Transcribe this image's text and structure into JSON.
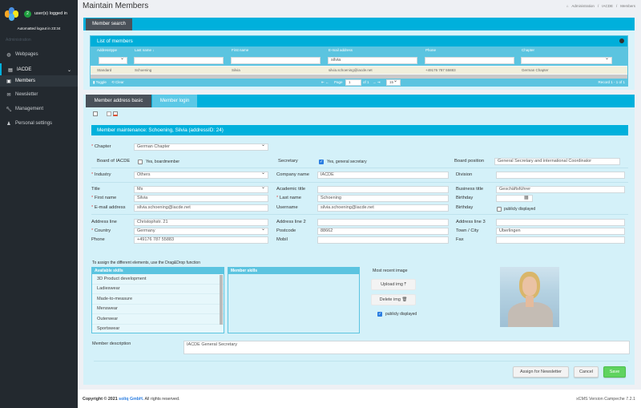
{
  "sidebar": {
    "logged_in": "user(s) logged in",
    "logged_in_count": "2",
    "auto_logout": "Automatted logout in 23:34",
    "section": "Administration",
    "items": [
      {
        "label": "Webpages",
        "icon": "globe-icon"
      },
      {
        "label": "IACDE",
        "icon": "book-icon"
      },
      {
        "label": "Members",
        "icon": "id-card-icon"
      },
      {
        "label": "Newsletter",
        "icon": "envelope-icon"
      },
      {
        "label": "Management",
        "icon": "wrench-icon"
      },
      {
        "label": "Personal settings",
        "icon": "user-icon"
      }
    ]
  },
  "header": {
    "title": "Maintain Members",
    "breadcrumb": [
      "Administration",
      "IACDE",
      "Members"
    ]
  },
  "search_tab": "Member search",
  "members_list": {
    "title": "List of members",
    "columns": [
      "Addresstype",
      "Last name",
      "First name",
      "E-mail address",
      "Phone",
      "Chapter"
    ],
    "filter_email": "silvia",
    "rows": [
      [
        "Standard",
        "Schoening",
        "Silvia",
        "silvia.schoening@iacde.net",
        "+49176 787 55883",
        "German Chapter"
      ]
    ],
    "toggle": "Toggle",
    "clear": "Clear",
    "page_label": "Page",
    "page": "1",
    "of_label": "of 1",
    "page_size": "15",
    "record": "Record 1 - 1 of 1"
  },
  "tabs": [
    "Member address basic",
    "Member login"
  ],
  "form": {
    "title": "Member maintenance: Schoening, Silvia (addressID: 24)",
    "chapter": {
      "label": "Chapter",
      "value": "German Chapter"
    },
    "board": {
      "label": "Board of IACDE",
      "option": "Yes, boardmember",
      "checked": false
    },
    "secretary": {
      "label": "Secretary",
      "option": "Yes, general secretary",
      "checked": true
    },
    "board_position": {
      "label": "Board position",
      "value": "General Secretary and international Coordinator"
    },
    "industry": {
      "label": "Industry",
      "value": "Others"
    },
    "company": {
      "label": "Company name",
      "value": "IACDE"
    },
    "division": {
      "label": "Division",
      "value": ""
    },
    "title_f": {
      "label": "Title",
      "value": "Ms"
    },
    "academic": {
      "label": "Academic title",
      "value": ""
    },
    "business": {
      "label": "Business title",
      "value": "Geschäftsführer"
    },
    "first": {
      "label": "First name",
      "value": "Silvia"
    },
    "last": {
      "label": "Last name",
      "value": "Schoening"
    },
    "birthday": {
      "label": "Birthday",
      "value": ""
    },
    "email": {
      "label": "E-mail address",
      "value": "silvia.schoening@iacde.net"
    },
    "username": {
      "label": "Username",
      "value": "silvia.schoening@iacde.net"
    },
    "birthday_pub": {
      "label": "Birthday",
      "option": "publicly displayed",
      "checked": false
    },
    "addr1": {
      "label": "Address line",
      "value": "Christophstr. 21"
    },
    "addr2": {
      "label": "Address line 2",
      "value": ""
    },
    "addr3": {
      "label": "Address line 3",
      "value": ""
    },
    "country": {
      "label": "Country",
      "value": "Germany"
    },
    "postcode": {
      "label": "Postcode",
      "value": "88662"
    },
    "town": {
      "label": "Town / City",
      "value": "Überlingen"
    },
    "phone": {
      "label": "Phone",
      "value": "+49176 787 55883"
    },
    "mobil": {
      "label": "Mobil",
      "value": ""
    },
    "fax": {
      "label": "Fax",
      "value": ""
    },
    "dnd_hint": "To assign the different elements, use the Drag&Drop function",
    "available_skills_title": "Available skills",
    "available_skills": [
      "3D Product development",
      "Ladieswear",
      "Made-to-measure",
      "Menswear",
      "Outerwear",
      "Sportswear"
    ],
    "member_skills_title": "Member skills",
    "image_title": "Most recent image",
    "upload": "Upload img",
    "delete": "Delete img",
    "image_public": {
      "option": "publicly displayed",
      "checked": true
    },
    "description": {
      "label": "Member description",
      "value": "IACDE General Secretary"
    },
    "assign": "Assign for Newsletter",
    "cancel": "Cancel",
    "save": "Save"
  },
  "footer": {
    "copyright_pre": "Copyright © 2021",
    "company": "soliq GmbH.",
    "rights": "All rights reserved.",
    "version": "xCMS Version Campeche 7.2.1"
  },
  "colors": {
    "accent": "#00b0dc",
    "panel": "#d4f1f9",
    "sidebar": "#23292f",
    "save": "#5fd35f",
    "tab_active": "#4a5159"
  }
}
